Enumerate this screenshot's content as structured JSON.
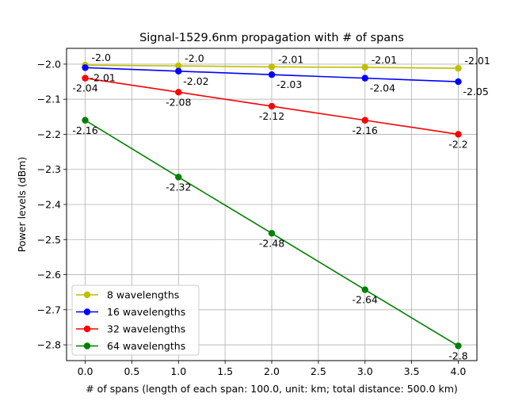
{
  "chart_data": {
    "type": "line",
    "title": "Signal-1529.6nm propagation with # of spans",
    "xlabel": "# of spans (length of each span: 100.0, unit: km; total distance: 500.0 km)",
    "ylabel": "Power levels (dBm)",
    "xlim": [
      -0.2,
      4.2
    ],
    "ylim": [
      -2.845,
      -1.955
    ],
    "xticks": [
      0.0,
      0.5,
      1.0,
      1.5,
      2.0,
      2.5,
      3.0,
      3.5,
      4.0
    ],
    "xtick_labels": [
      "0.0",
      "0.5",
      "1.0",
      "1.5",
      "2.0",
      "2.5",
      "3.0",
      "3.5",
      "4.0"
    ],
    "yticks": [
      -2.0,
      -2.1,
      -2.2,
      -2.3,
      -2.4,
      -2.5,
      -2.6,
      -2.7,
      -2.8
    ],
    "ytick_labels": [
      "−2.0",
      "−2.1",
      "−2.2",
      "−2.3",
      "−2.4",
      "−2.5",
      "−2.6",
      "−2.7",
      "−2.8"
    ],
    "grid": true,
    "legend_position": "lower-left",
    "x": [
      0,
      1,
      2,
      3,
      4
    ],
    "series": [
      {
        "name": "8 wavelengths",
        "color": "#bfbf00",
        "values": [
          -2.003,
          -2.005,
          -2.008,
          -2.009,
          -2.012
        ],
        "labels": [
          "-2.0",
          "-2.0",
          "-2.01",
          "-2.01",
          "-2.01"
        ],
        "label_side": "above"
      },
      {
        "name": "16 wavelengths",
        "color": "#0000ff",
        "values": [
          -2.01,
          -2.02,
          -2.03,
          -2.04,
          -2.05
        ],
        "labels": [
          "-2.01",
          "-2.02",
          "-2.03",
          "-2.04",
          "-2.05"
        ],
        "label_side": "below"
      },
      {
        "name": "32 wavelengths",
        "color": "#ff0000",
        "values": [
          -2.04,
          -2.08,
          -2.12,
          -2.16,
          -2.2
        ],
        "labels": [
          "-2.04",
          "-2.08",
          "-2.12",
          "-2.16",
          "-2.2"
        ],
        "label_side": "below"
      },
      {
        "name": "64 wavelengths",
        "color": "#008000",
        "values": [
          -2.16,
          -2.322,
          -2.482,
          -2.643,
          -2.803
        ],
        "labels": [
          "-2.16",
          "-2.32",
          "-2.48",
          "-2.64",
          "-2.8"
        ],
        "label_side": "below"
      }
    ]
  }
}
